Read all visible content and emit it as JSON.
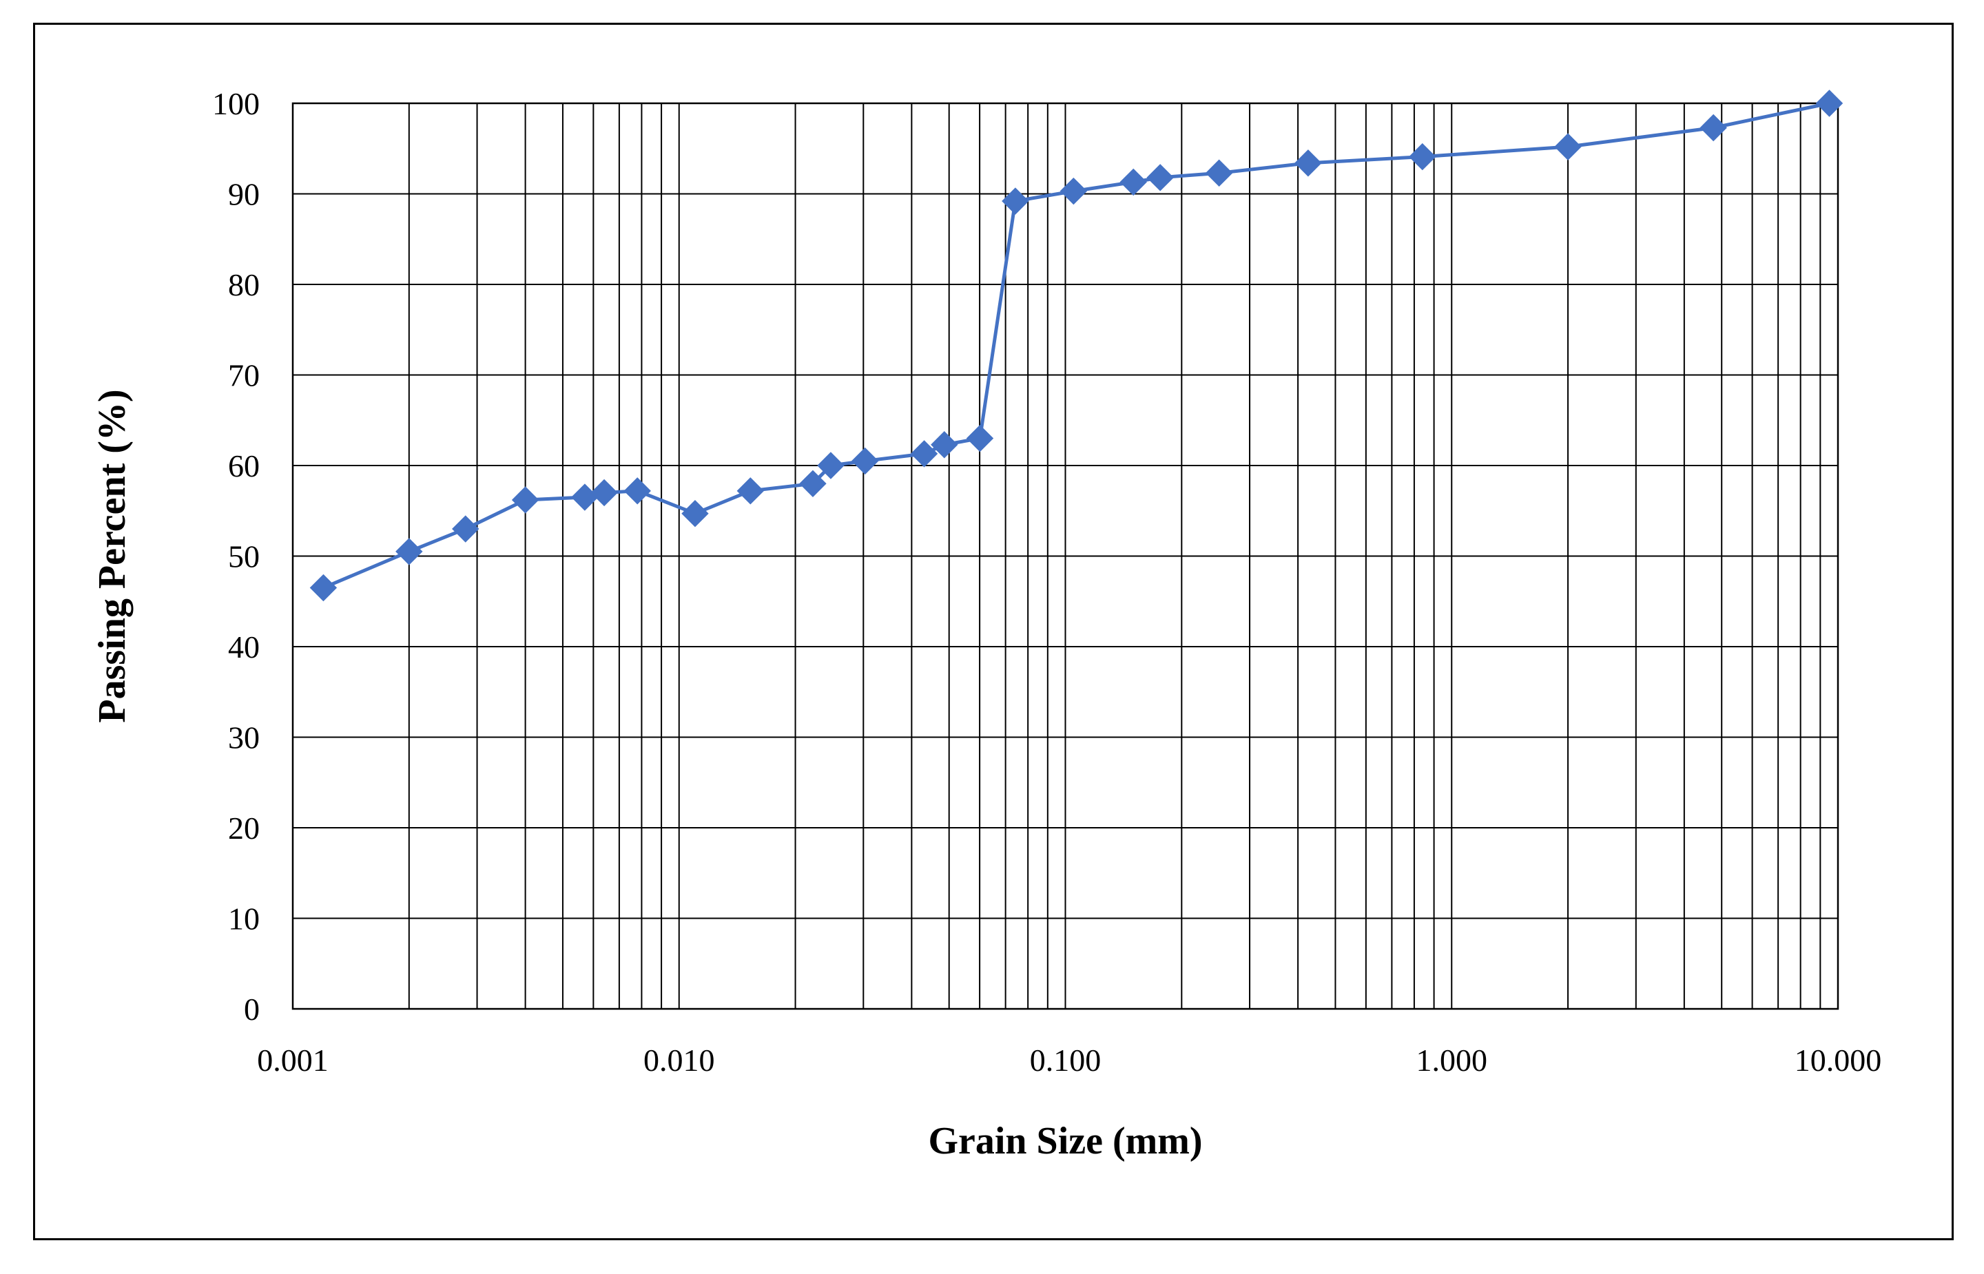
{
  "chart_data": {
    "type": "line",
    "title": "",
    "xlabel": "Grain  Size (mm)",
    "ylabel": "Passing Percent (%)",
    "xscale": "log",
    "xlim": [
      0.001,
      10
    ],
    "ylim": [
      0,
      100
    ],
    "grid": true,
    "legend": "none",
    "line_color": "#4472C4",
    "marker": "diamond",
    "x_ticks": [
      "0.001",
      "0.010",
      "0.100",
      "1.000",
      "10.000"
    ],
    "y_ticks": [
      "0",
      "10",
      "20",
      "30",
      "40",
      "50",
      "60",
      "70",
      "80",
      "90",
      "100"
    ],
    "series": [
      {
        "x": [
          0.0012,
          0.002,
          0.0028,
          0.004,
          0.0057,
          0.0064,
          0.0078,
          0.011,
          0.0153,
          0.0222,
          0.0247,
          0.0303,
          0.0431,
          0.0486,
          0.0601,
          0.0742,
          0.105,
          0.15,
          0.176,
          0.25,
          0.425,
          0.84,
          2.0,
          4.76,
          9.5
        ],
        "y": [
          46.5,
          50.5,
          53.0,
          56.2,
          56.5,
          57.0,
          57.2,
          54.7,
          57.2,
          58.0,
          60.0,
          60.5,
          61.3,
          62.3,
          63.0,
          89.2,
          90.3,
          91.3,
          91.8,
          92.3,
          93.4,
          94.1,
          95.2,
          97.3,
          100.0
        ]
      }
    ]
  }
}
